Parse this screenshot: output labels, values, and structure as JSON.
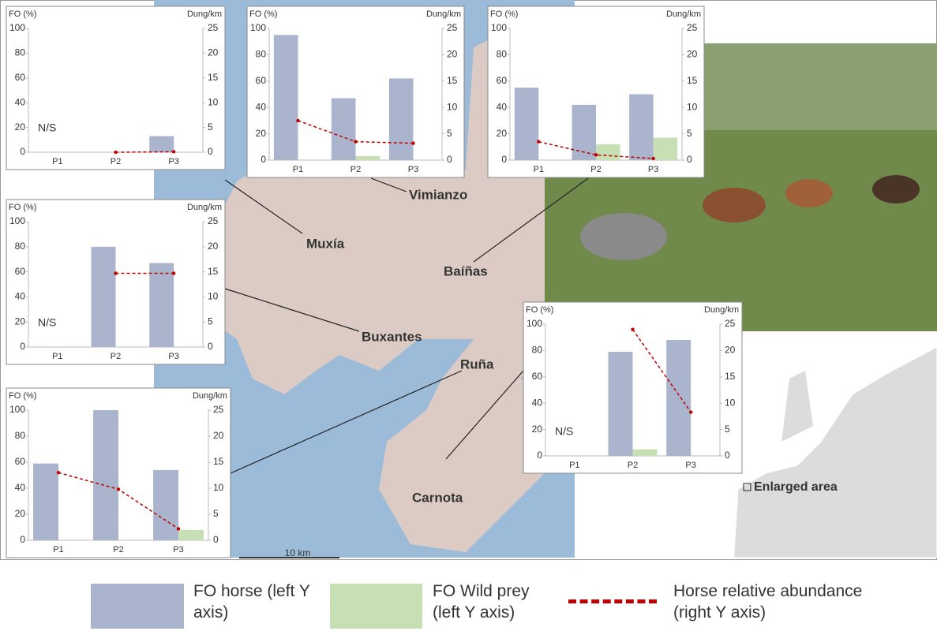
{
  "chart_data": [
    {
      "type": "bar",
      "ylabel": "FO (%)",
      "y2label": "Dung/km",
      "annotation": "N/S",
      "categories": [
        "P1",
        "P2",
        "P3"
      ],
      "ylim": [
        0,
        100
      ],
      "yticks": [
        0,
        20,
        40,
        60,
        80,
        100
      ],
      "y2lim": [
        0,
        25
      ],
      "y2ticks": [
        0,
        5,
        10,
        15,
        20,
        25
      ],
      "series": [
        {
          "name": "FO horse (left Y axis)",
          "color": "#aab4cc",
          "values": [
            null,
            0,
            13
          ]
        },
        {
          "name": "FO Wild prey (left Y axis)",
          "color": "#c6e0b4",
          "values": [
            null,
            0,
            0
          ]
        },
        {
          "name": "Horse relative abundance (right Y axis)",
          "color": "#c00000",
          "type": "line",
          "axis": "y2",
          "values": [
            null,
            0,
            0.1
          ]
        }
      ]
    },
    {
      "type": "bar",
      "ylabel": "FO (%)",
      "y2label": "Dung/km",
      "categories": [
        "P1",
        "P2",
        "P3"
      ],
      "ylim": [
        0,
        100
      ],
      "yticks": [
        0,
        20,
        40,
        60,
        80,
        100
      ],
      "y2lim": [
        0,
        25
      ],
      "y2ticks": [
        0,
        5,
        10,
        15,
        20,
        25
      ],
      "series": [
        {
          "name": "FO horse (left Y axis)",
          "color": "#aab4cc",
          "values": [
            95,
            47,
            62
          ]
        },
        {
          "name": "FO Wild prey (left Y axis)",
          "color": "#c6e0b4",
          "values": [
            0,
            3,
            0
          ]
        },
        {
          "name": "Horse relative abundance (right Y axis)",
          "color": "#c00000",
          "type": "line",
          "axis": "y2",
          "values": [
            7.5,
            3.5,
            3.2
          ]
        }
      ]
    },
    {
      "type": "bar",
      "ylabel": "FO (%)",
      "y2label": "Dung/km",
      "categories": [
        "P1",
        "P2",
        "P3"
      ],
      "ylim": [
        0,
        100
      ],
      "yticks": [
        0,
        20,
        40,
        60,
        80,
        100
      ],
      "y2lim": [
        0,
        25
      ],
      "y2ticks": [
        0,
        5,
        10,
        15,
        20,
        25
      ],
      "series": [
        {
          "name": "FO horse (left Y axis)",
          "color": "#aab4cc",
          "values": [
            55,
            42,
            50
          ]
        },
        {
          "name": "FO Wild prey (left Y axis)",
          "color": "#c6e0b4",
          "values": [
            0,
            12,
            17
          ]
        },
        {
          "name": "Horse relative abundance (right Y axis)",
          "color": "#c00000",
          "type": "line",
          "axis": "y2",
          "values": [
            3.5,
            1,
            0.3
          ]
        }
      ]
    },
    {
      "type": "bar",
      "ylabel": "FO (%)",
      "y2label": "Dung/km",
      "annotation": "N/S",
      "categories": [
        "P1",
        "P2",
        "P3"
      ],
      "ylim": [
        0,
        100
      ],
      "yticks": [
        0,
        20,
        40,
        60,
        80,
        100
      ],
      "y2lim": [
        0,
        25
      ],
      "y2ticks": [
        0,
        5,
        10,
        15,
        20,
        25
      ],
      "series": [
        {
          "name": "FO horse (left Y axis)",
          "color": "#aab4cc",
          "values": [
            null,
            80,
            67
          ]
        },
        {
          "name": "FO Wild prey (left Y axis)",
          "color": "#c6e0b4",
          "values": [
            null,
            0,
            0
          ]
        },
        {
          "name": "Horse relative abundance (right Y axis)",
          "color": "#c00000",
          "type": "line",
          "axis": "y2",
          "values": [
            null,
            14.7,
            14.7
          ]
        }
      ]
    },
    {
      "type": "bar",
      "ylabel": "FO (%)",
      "y2label": "Dung/km",
      "categories": [
        "P1",
        "P2",
        "P3"
      ],
      "ylim": [
        0,
        100
      ],
      "yticks": [
        0,
        20,
        40,
        60,
        80,
        100
      ],
      "y2lim": [
        0,
        25
      ],
      "y2ticks": [
        0,
        5,
        10,
        15,
        20,
        25
      ],
      "series": [
        {
          "name": "FO horse (left Y axis)",
          "color": "#aab4cc",
          "values": [
            59,
            100,
            54
          ]
        },
        {
          "name": "FO Wild prey (left Y axis)",
          "color": "#c6e0b4",
          "values": [
            0,
            0,
            8
          ]
        },
        {
          "name": "Horse relative abundance (right Y axis)",
          "color": "#c00000",
          "type": "line",
          "axis": "y2",
          "values": [
            13,
            9.8,
            2.2
          ]
        }
      ]
    },
    {
      "type": "bar",
      "ylabel": "FO (%)",
      "y2label": "Dung/km",
      "annotation": "N/S",
      "categories": [
        "P1",
        "P2",
        "P3"
      ],
      "ylim": [
        0,
        100
      ],
      "yticks": [
        0,
        20,
        40,
        60,
        80,
        100
      ],
      "y2lim": [
        0,
        25
      ],
      "y2ticks": [
        0,
        5,
        10,
        15,
        20,
        25
      ],
      "series": [
        {
          "name": "FO horse (left Y axis)",
          "color": "#aab4cc",
          "values": [
            null,
            79,
            88
          ]
        },
        {
          "name": "FO Wild prey (left Y axis)",
          "color": "#c6e0b4",
          "values": [
            null,
            5,
            0
          ]
        },
        {
          "name": "Horse relative abundance (right Y axis)",
          "color": "#c00000",
          "type": "line",
          "axis": "y2",
          "values": [
            null,
            24,
            8.3
          ]
        }
      ]
    }
  ],
  "map": {
    "places": [
      "Muxía",
      "Vimianzo",
      "Baíñas",
      "Buxantes",
      "Ruña",
      "Carnota"
    ],
    "scale": "10 km",
    "inset_label": "Enlarged area"
  }
}
